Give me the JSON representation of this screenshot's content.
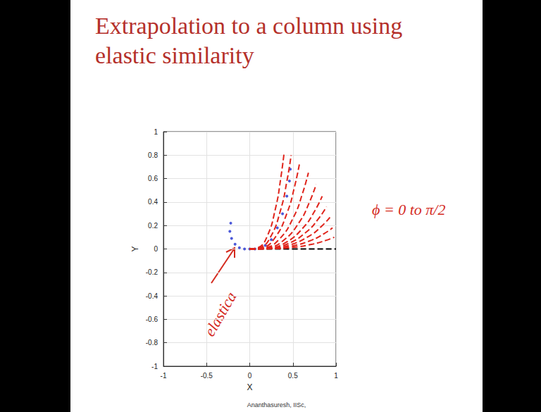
{
  "chart_data": {
    "type": "line",
    "title": "Extrapolation to a column using elastic similarity",
    "xlabel": "X",
    "ylabel": "Y",
    "xlim": [
      -1,
      1
    ],
    "ylim": [
      -1,
      1
    ],
    "xticks": [
      -1,
      -0.5,
      0,
      0.5,
      1
    ],
    "yticks": [
      -1,
      -0.8,
      -0.6,
      -0.4,
      -0.2,
      0,
      0.2,
      0.4,
      0.6,
      0.8,
      1
    ],
    "grid": true,
    "annotations": [
      {
        "text": "elastica",
        "color": "#d42a1e"
      },
      {
        "text": "ϕ = 0 to π/2",
        "color": "#d42a1e"
      }
    ],
    "footer": "Ananthasuresh, IISc,",
    "series": [
      {
        "type": "line",
        "color": "#000000",
        "line_style": "dashed",
        "x": [
          0,
          1
        ],
        "values": [
          0,
          0
        ]
      },
      {
        "type": "line",
        "color": "#e0241b",
        "line_style": "dashed",
        "x": [
          0,
          0.245,
          0.49,
          0.735,
          0.882,
          0.98
        ],
        "values": [
          0,
          0.002,
          0.013,
          0.042,
          0.073,
          0.1
        ]
      },
      {
        "type": "line",
        "color": "#e0241b",
        "line_style": "dashed",
        "x": [
          0,
          0.24,
          0.48,
          0.72,
          0.864,
          0.96
        ],
        "values": [
          0,
          0.003,
          0.023,
          0.076,
          0.131,
          0.18
        ]
      },
      {
        "type": "line",
        "color": "#e0241b",
        "line_style": "dashed",
        "x": [
          0,
          0.233,
          0.465,
          0.698,
          0.837,
          0.93
        ],
        "values": [
          0,
          0.004,
          0.034,
          0.114,
          0.197,
          0.27
        ]
      },
      {
        "type": "line",
        "color": "#e0241b",
        "line_style": "dashed",
        "x": [
          0,
          0.223,
          0.445,
          0.668,
          0.801,
          0.89
        ],
        "values": [
          0,
          0.006,
          0.045,
          0.152,
          0.262,
          0.36
        ]
      },
      {
        "type": "line",
        "color": "#e0241b",
        "line_style": "dashed",
        "x": [
          0,
          0.21,
          0.42,
          0.63,
          0.756,
          0.84
        ],
        "values": [
          0,
          0.007,
          0.056,
          0.19,
          0.328,
          0.45
        ]
      },
      {
        "type": "line",
        "color": "#e0241b",
        "line_style": "dashed",
        "x": [
          0,
          0.193,
          0.385,
          0.578,
          0.693,
          0.77
        ],
        "values": [
          0,
          0.009,
          0.069,
          0.232,
          0.401,
          0.55
        ]
      },
      {
        "type": "line",
        "color": "#e0241b",
        "line_style": "dashed",
        "x": [
          0,
          0.17,
          0.34,
          0.51,
          0.612,
          0.68
        ],
        "values": [
          0,
          0.01,
          0.081,
          0.274,
          0.474,
          0.65
        ]
      },
      {
        "type": "line",
        "color": "#e0241b",
        "line_style": "dashed",
        "x": [
          0,
          0.145,
          0.29,
          0.435,
          0.522,
          0.58
        ],
        "values": [
          0,
          0.012,
          0.093,
          0.312,
          0.539,
          0.74
        ]
      },
      {
        "type": "line",
        "color": "#e0241b",
        "line_style": "dashed",
        "x": [
          0,
          0.12,
          0.24,
          0.36,
          0.432,
          0.48
        ],
        "values": [
          0,
          0.013,
          0.1,
          0.338,
          0.583,
          0.8
        ]
      },
      {
        "type": "line",
        "color": "#e0241b",
        "line_style": "dashed",
        "x": [
          0,
          0.1,
          0.2,
          0.3,
          0.36,
          0.4
        ],
        "values": [
          0,
          0.013,
          0.104,
          0.35,
          0.605,
          0.83
        ]
      },
      {
        "type": "scatter",
        "color": "#1f2fd0",
        "marker": "circle",
        "x": [
          -0.22,
          -0.23,
          -0.21,
          -0.17,
          -0.12,
          -0.06,
          0,
          0.06,
          0.12,
          0.18,
          0.25,
          0.32,
          0.38,
          0.43,
          0.46,
          0.47
        ],
        "values": [
          0.22,
          0.15,
          0.09,
          0.04,
          0.01,
          0,
          0,
          0,
          0.01,
          0.03,
          0.08,
          0.18,
          0.3,
          0.45,
          0.58,
          0.68
        ]
      }
    ]
  }
}
